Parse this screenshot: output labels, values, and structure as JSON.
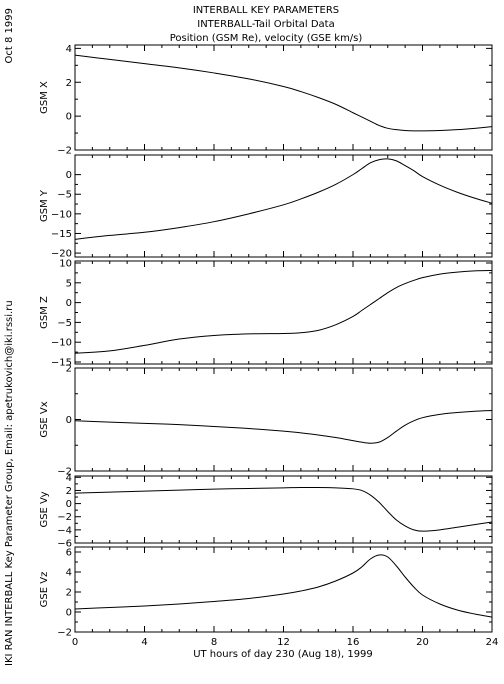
{
  "header": {
    "title_lines": [
      "INTERBALL KEY PARAMETERS",
      "INTERBALL-Tail Orbital Data",
      "Position (GSM Re), velocity (GSE km/s)"
    ],
    "date": "Oct  8 1999",
    "footer_credit": "IKI RAN INTERBALL Key Parameter Group, Email: apetrukovich@iki.rssi.ru"
  },
  "chart_data": {
    "type": "line",
    "xlabel": "UT hours of day 230 (Aug 18), 1999",
    "xlim": [
      0,
      24
    ],
    "xticks": [
      0,
      4,
      8,
      12,
      16,
      20,
      24
    ],
    "x": [
      0,
      2,
      4,
      6,
      8,
      10,
      12,
      13,
      14,
      15,
      16,
      16.5,
      17,
      17.5,
      18,
      18.5,
      19,
      19.5,
      20,
      21,
      22,
      23,
      24
    ],
    "panels": [
      {
        "ylabel": "GSM X",
        "ylim": [
          -2,
          4.2
        ],
        "yticks": [
          -2,
          0,
          2,
          4
        ],
        "y": [
          3.6,
          3.35,
          3.1,
          2.85,
          2.55,
          2.2,
          1.75,
          1.45,
          1.1,
          0.7,
          0.2,
          -0.05,
          -0.3,
          -0.55,
          -0.72,
          -0.8,
          -0.85,
          -0.87,
          -0.87,
          -0.85,
          -0.8,
          -0.72,
          -0.62
        ]
      },
      {
        "ylabel": "GSM Y",
        "ylim": [
          -21,
          5
        ],
        "yticks": [
          -20,
          -15,
          -10,
          -5,
          0
        ],
        "y": [
          -16.5,
          -15.5,
          -14.7,
          -13.5,
          -12,
          -10,
          -7.7,
          -6.2,
          -4.5,
          -2.5,
          0,
          1.5,
          3,
          3.8,
          4,
          3.5,
          2.3,
          1,
          -0.5,
          -2.7,
          -4.5,
          -6,
          -7.3
        ]
      },
      {
        "ylabel": "GSM Z",
        "ylim": [
          -15.5,
          10.5
        ],
        "yticks": [
          -15,
          -10,
          -5,
          0,
          5,
          10
        ],
        "y": [
          -12.8,
          -12.2,
          -10.8,
          -9.2,
          -8.3,
          -7.9,
          -7.8,
          -7.6,
          -7,
          -5.6,
          -3.5,
          -2,
          -0.5,
          1,
          2.5,
          3.8,
          4.8,
          5.6,
          6.3,
          7.2,
          7.7,
          8,
          8.1
        ]
      },
      {
        "ylabel": "GSE Vx",
        "ylim": [
          -2,
          2
        ],
        "yticks": [
          -2,
          0,
          2
        ],
        "y": [
          -0.05,
          -0.1,
          -0.15,
          -0.2,
          -0.27,
          -0.35,
          -0.45,
          -0.52,
          -0.6,
          -0.7,
          -0.82,
          -0.88,
          -0.92,
          -0.88,
          -0.7,
          -0.45,
          -0.22,
          -0.05,
          0.07,
          0.2,
          0.27,
          0.32,
          0.35
        ]
      },
      {
        "ylabel": "GSE Vy",
        "ylim": [
          -6,
          4.2
        ],
        "yticks": [
          -6,
          -4,
          -2,
          0,
          2,
          4
        ],
        "y": [
          1.6,
          1.75,
          1.9,
          2.05,
          2.2,
          2.3,
          2.4,
          2.45,
          2.45,
          2.4,
          2.25,
          2.0,
          1.3,
          0.2,
          -1.2,
          -2.5,
          -3.4,
          -4.0,
          -4.2,
          -4.0,
          -3.6,
          -3.2,
          -2.8
        ]
      },
      {
        "ylabel": "GSE Vz",
        "ylim": [
          -2,
          6.5
        ],
        "yticks": [
          -2,
          0,
          2,
          4,
          6
        ],
        "y": [
          0.3,
          0.45,
          0.6,
          0.8,
          1.05,
          1.35,
          1.8,
          2.1,
          2.5,
          3.1,
          3.9,
          4.5,
          5.3,
          5.7,
          5.5,
          4.6,
          3.5,
          2.5,
          1.7,
          0.8,
          0.2,
          -0.2,
          -0.5
        ]
      }
    ]
  }
}
